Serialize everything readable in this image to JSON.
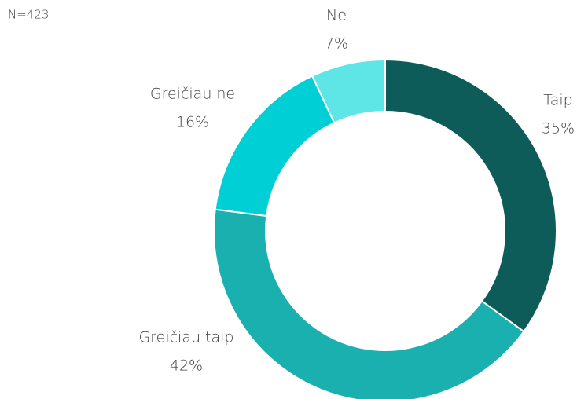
{
  "chart_data": {
    "type": "donut",
    "note": "N=423",
    "categories": [
      "Taip",
      "Greičiau taip",
      "Greičiau ne",
      "Ne"
    ],
    "values": [
      35,
      42,
      16,
      7
    ],
    "value_labels": [
      "35%",
      "42%",
      "16%",
      "7%"
    ],
    "colors": [
      "#0e5c59",
      "#1ab0b0",
      "#00cfd5",
      "#5ee5e6"
    ]
  }
}
